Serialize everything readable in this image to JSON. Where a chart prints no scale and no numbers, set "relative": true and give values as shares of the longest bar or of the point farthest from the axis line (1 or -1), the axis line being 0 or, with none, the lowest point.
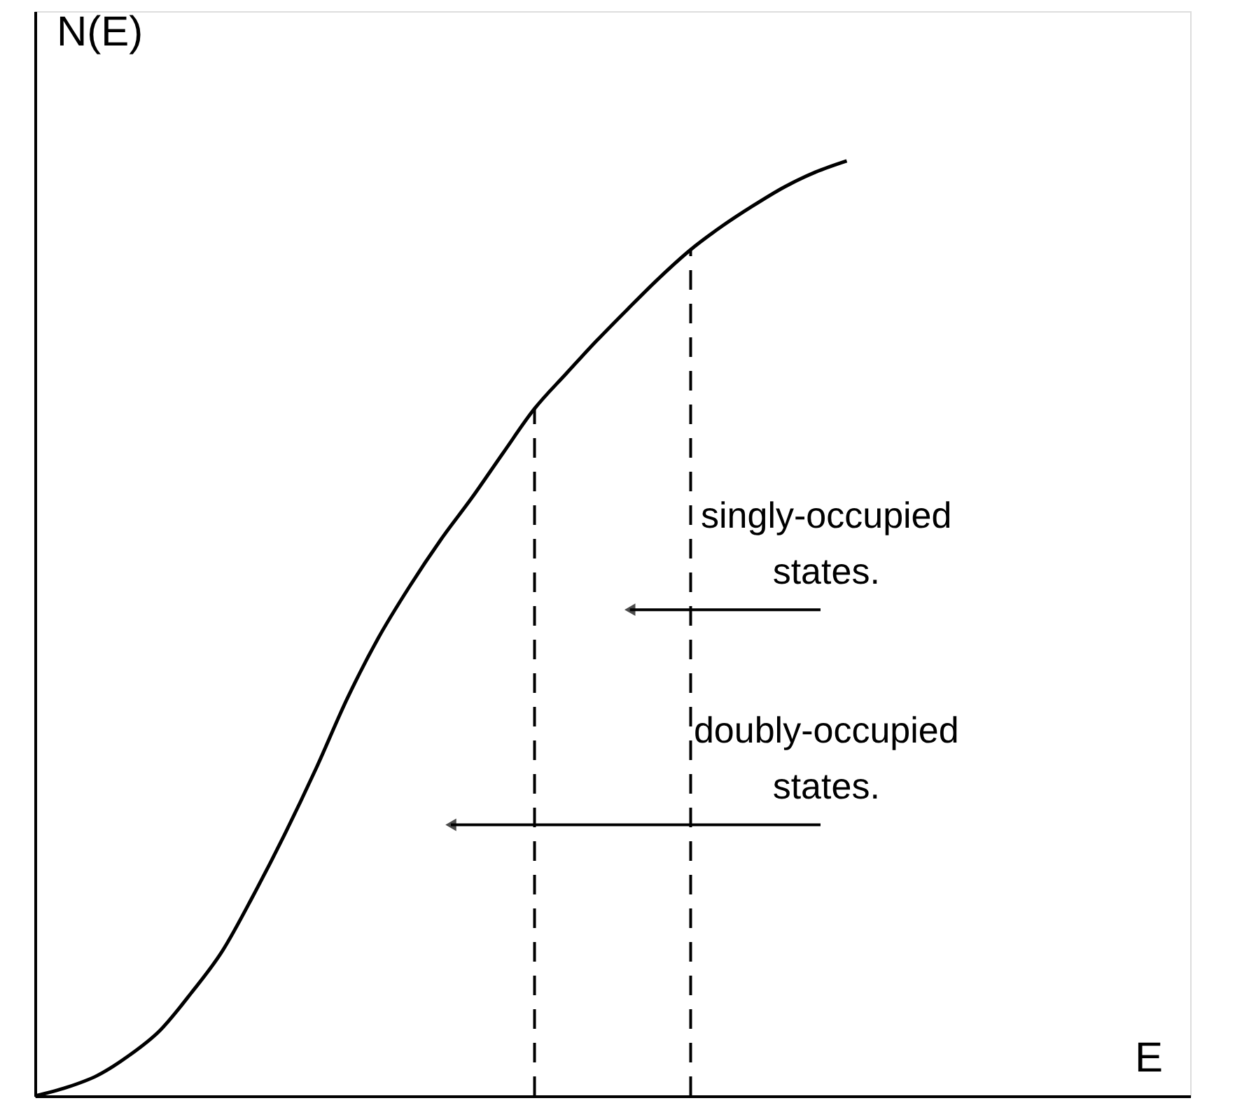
{
  "chart_data": {
    "type": "line",
    "relative": true,
    "xlabel": "E",
    "ylabel": "N(E)",
    "categories": [
      null,
      null,
      null,
      null,
      null,
      null,
      null,
      null,
      null,
      null,
      null,
      null,
      null,
      null,
      null,
      null,
      null,
      null,
      null,
      null,
      null,
      null,
      null,
      null,
      null,
      null,
      null,
      null,
      null,
      null,
      null,
      null,
      null,
      null,
      null,
      null,
      null,
      null
    ],
    "series": [
      {
        "color": "#000000",
        "values": [
          0,
          0.009,
          0.022,
          0.043,
          0.07,
          0.11,
          0.155,
          0.215,
          0.28,
          0.35,
          0.425,
          0.49,
          0.545,
          0.595,
          0.64,
          0.688,
          0.735,
          0.772,
          0.808,
          0.842,
          0.875,
          0.905,
          0.93,
          0.952,
          0.972,
          0.988,
          1.0,
          null,
          null,
          null,
          null,
          null,
          null,
          null,
          null,
          null,
          null,
          null
        ]
      }
    ],
    "annotations": [
      "singly-occupied\nstates.",
      "doubly-occupied\nstates."
    ],
    "grid": false,
    "marker": "none",
    "line_style": "solid"
  }
}
